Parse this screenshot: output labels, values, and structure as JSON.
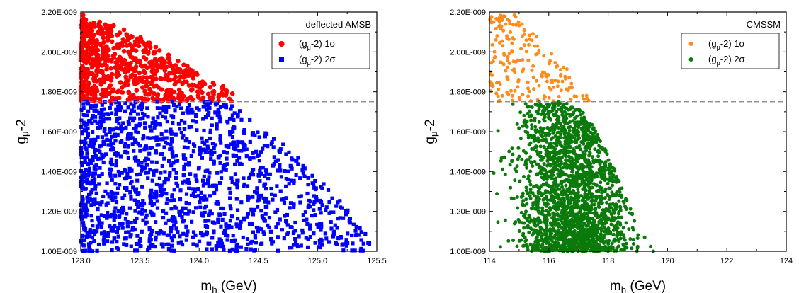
{
  "chart_data": [
    {
      "type": "scatter",
      "legend_title": "deflected AMSB",
      "xlabel": "m_h (GeV)",
      "ylabel": "g_μ-2",
      "xlim": [
        123.0,
        125.5
      ],
      "ylim": [
        1e-09,
        2.2e-09
      ],
      "xticks": [
        "123.0",
        "123.5",
        "124.0",
        "124.5",
        "125.0",
        "125.5"
      ],
      "yticks": [
        "1.00E-009",
        "1.20E-009",
        "1.40E-009",
        "1.60E-009",
        "1.80E-009",
        "2.00E-009",
        "2.20E-009"
      ],
      "reference_line_y": 1.75e-09,
      "legend_position": "top-right",
      "series": [
        {
          "name": "(g_μ-2) 1σ",
          "marker": "circle",
          "color": "#ff0000",
          "y_range": [
            1.75e-09,
            2.19e-09
          ],
          "x_start": 123.0,
          "envelope": [
            [
              123.0,
              2.19e-09
            ],
            [
              123.3,
              2.13e-09
            ],
            [
              123.5,
              2.08e-09
            ],
            [
              123.7,
              2e-09
            ],
            [
              123.9,
              1.93e-09
            ],
            [
              124.1,
              1.85e-09
            ],
            [
              124.3,
              1.82e-09
            ]
          ]
        },
        {
          "name": "(g_μ-2) 2σ",
          "marker": "square",
          "color": "#0000ff",
          "y_range": [
            1e-09,
            1.75e-09
          ],
          "x_start": 123.0,
          "envelope": [
            [
              123.0,
              1.75e-09
            ],
            [
              124.0,
              1.75e-09
            ],
            [
              124.3,
              1.74e-09
            ],
            [
              124.5,
              1.62e-09
            ],
            [
              124.8,
              1.5e-09
            ],
            [
              125.0,
              1.38e-09
            ],
            [
              125.2,
              1.25e-09
            ],
            [
              125.45,
              1.05e-09
            ]
          ]
        }
      ]
    },
    {
      "type": "scatter",
      "legend_title": "CMSSM",
      "xlabel": "m_h (GeV)",
      "ylabel": "g_μ-2",
      "xlim": [
        114,
        124
      ],
      "ylim": [
        1e-09,
        2.2e-09
      ],
      "xticks": [
        "114",
        "116",
        "118",
        "120",
        "122",
        "124"
      ],
      "yticks": [
        "1.00E-009",
        "1.20E-009",
        "1.40E-009",
        "1.60E-009",
        "1.80E-009",
        "2.00E-009",
        "2.20E-009"
      ],
      "reference_line_y": 1.75e-09,
      "legend_position": "top-right",
      "series": [
        {
          "name": "(g_μ-2) 1σ",
          "marker": "circle",
          "color": "#ff8c1a",
          "y_range": [
            1.75e-09,
            2.19e-09
          ],
          "x_start": 114,
          "envelope": [
            [
              114.0,
              2.18e-09
            ],
            [
              115.0,
              2.19e-09
            ],
            [
              115.5,
              2.1e-09
            ],
            [
              116.5,
              1.95e-09
            ],
            [
              117.0,
              1.82e-09
            ],
            [
              117.6,
              1.76e-09
            ]
          ]
        },
        {
          "name": "(g_μ-2) 2σ",
          "marker": "circle",
          "color": "#0a7a0a",
          "y_range": [
            1e-09,
            1.75e-09
          ],
          "x_start": 114,
          "envelope": [
            [
              114.0,
              1.75e-09
            ],
            [
              116.5,
              1.75e-09
            ],
            [
              117.2,
              1.7e-09
            ],
            [
              117.8,
              1.55e-09
            ],
            [
              118.3,
              1.38e-09
            ],
            [
              118.8,
              1.2e-09
            ],
            [
              119.2,
              1.08e-09
            ],
            [
              119.6,
              1.02e-09
            ]
          ]
        }
      ]
    }
  ]
}
